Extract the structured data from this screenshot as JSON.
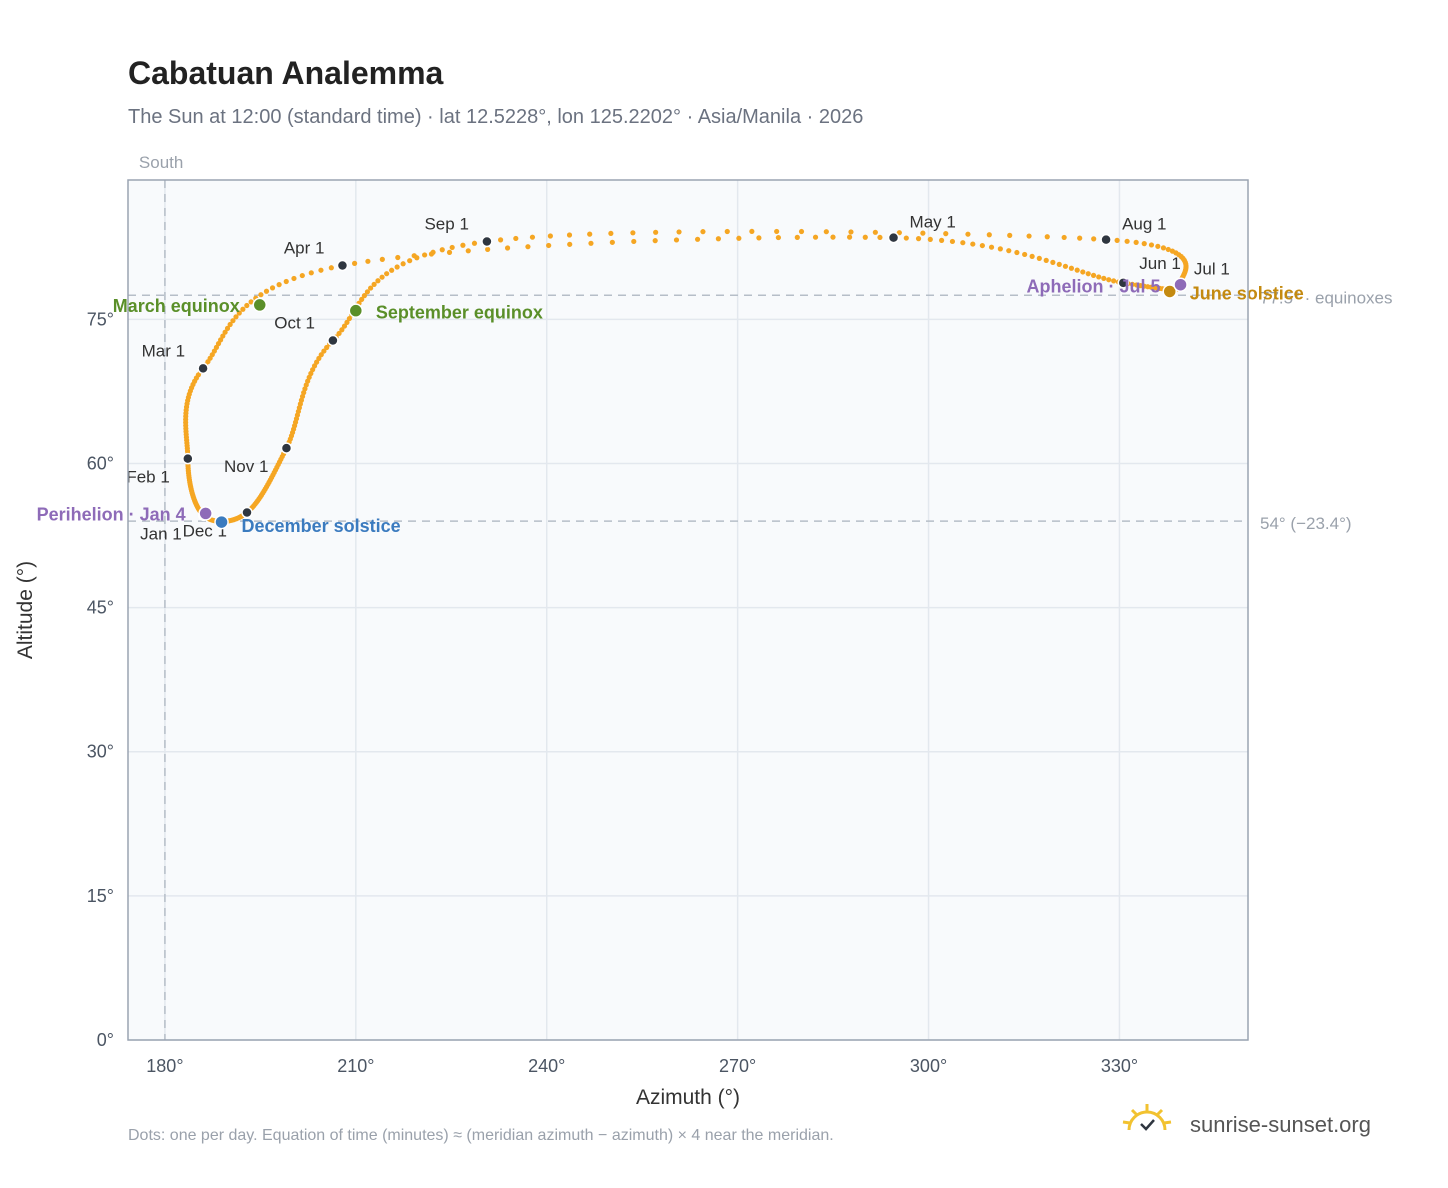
{
  "header": {
    "title": "Cabatuan Analemma",
    "subtitle": "The Sun at 12:00 (standard time) · lat 12.5228°, lon 125.2202° · Asia/Manila · 2026"
  },
  "footer": {
    "note": "Dots: one per day. Equation of time (minutes) ≈ (meridian azimuth − azimuth) × 4 near the meridian.",
    "brand": "sunrise-sunset.org"
  },
  "colors": {
    "path": "#f5a623",
    "month_dot": "#2f3640",
    "equinox": "#5a8f29",
    "june_solstice": "#c48a10",
    "december_solstice": "#3b7bbf",
    "apsis": "#8e6bb8",
    "grid": "#e3e8ee",
    "plot_bg": "#f8fafc",
    "frame": "#9aa4b2",
    "ref_line": "#b6bec8"
  },
  "chart_data": {
    "type": "scatter",
    "title": "Cabatuan Analemma",
    "xlabel": "Azimuth (°)",
    "ylabel": "Altitude (°)",
    "xlim": [
      174.2,
      350.2
    ],
    "ylim": [
      0,
      89.5
    ],
    "xticks": [
      180,
      210,
      240,
      270,
      300,
      330
    ],
    "yticks": [
      0,
      15,
      30,
      45,
      60,
      75
    ],
    "x_tick_labels": [
      "180°",
      "210°",
      "240°",
      "270°",
      "300°",
      "330°"
    ],
    "y_tick_labels": [
      "0°",
      "15°",
      "30°",
      "45°",
      "60°",
      "75°"
    ],
    "grid": true,
    "meridian": {
      "azimuth": 180,
      "label": "South"
    },
    "reference_lines": [
      {
        "altitude": 77.5,
        "label": "77.5° · equinoxes"
      },
      {
        "altitude": 54,
        "label": "54° (−23.4°)"
      }
    ],
    "month_points": [
      {
        "label": "Jan 1",
        "az": 186.1,
        "alt": 54.6
      },
      {
        "label": "Feb 1",
        "az": 183.6,
        "alt": 60.5
      },
      {
        "label": "Mar 1",
        "az": 186.0,
        "alt": 69.9
      },
      {
        "label": "Apr 1",
        "az": 207.9,
        "alt": 80.6
      },
      {
        "label": "May 1",
        "az": 294.5,
        "alt": 83.5
      },
      {
        "label": "Jun 1",
        "az": 330.6,
        "alt": 78.8
      },
      {
        "label": "Jul 1",
        "az": 339.5,
        "alt": 78.6
      },
      {
        "label": "Aug 1",
        "az": 327.9,
        "alt": 83.3
      },
      {
        "label": "Sep 1",
        "az": 230.6,
        "alt": 83.1
      },
      {
        "label": "Oct 1",
        "az": 206.4,
        "alt": 72.8
      },
      {
        "label": "Nov 1",
        "az": 199.1,
        "alt": 61.6
      },
      {
        "label": "Dec 1",
        "az": 192.9,
        "alt": 54.9
      }
    ],
    "events": [
      {
        "label": "March equinox",
        "az": 194.9,
        "alt": 76.5,
        "kind": "equinox"
      },
      {
        "label": "September equinox",
        "az": 210.0,
        "alt": 75.9,
        "kind": "equinox"
      },
      {
        "label": "June solstice",
        "az": 337.9,
        "alt": 77.9,
        "kind": "june_solstice"
      },
      {
        "label": "December solstice",
        "az": 188.9,
        "alt": 53.9,
        "kind": "december_solstice"
      },
      {
        "label": "Perihelion · Jan 4",
        "az": 186.4,
        "alt": 54.8,
        "kind": "apsis"
      },
      {
        "label": "Aphelion · Jul 5",
        "az": 339.6,
        "alt": 78.6,
        "kind": "apsis"
      }
    ]
  }
}
